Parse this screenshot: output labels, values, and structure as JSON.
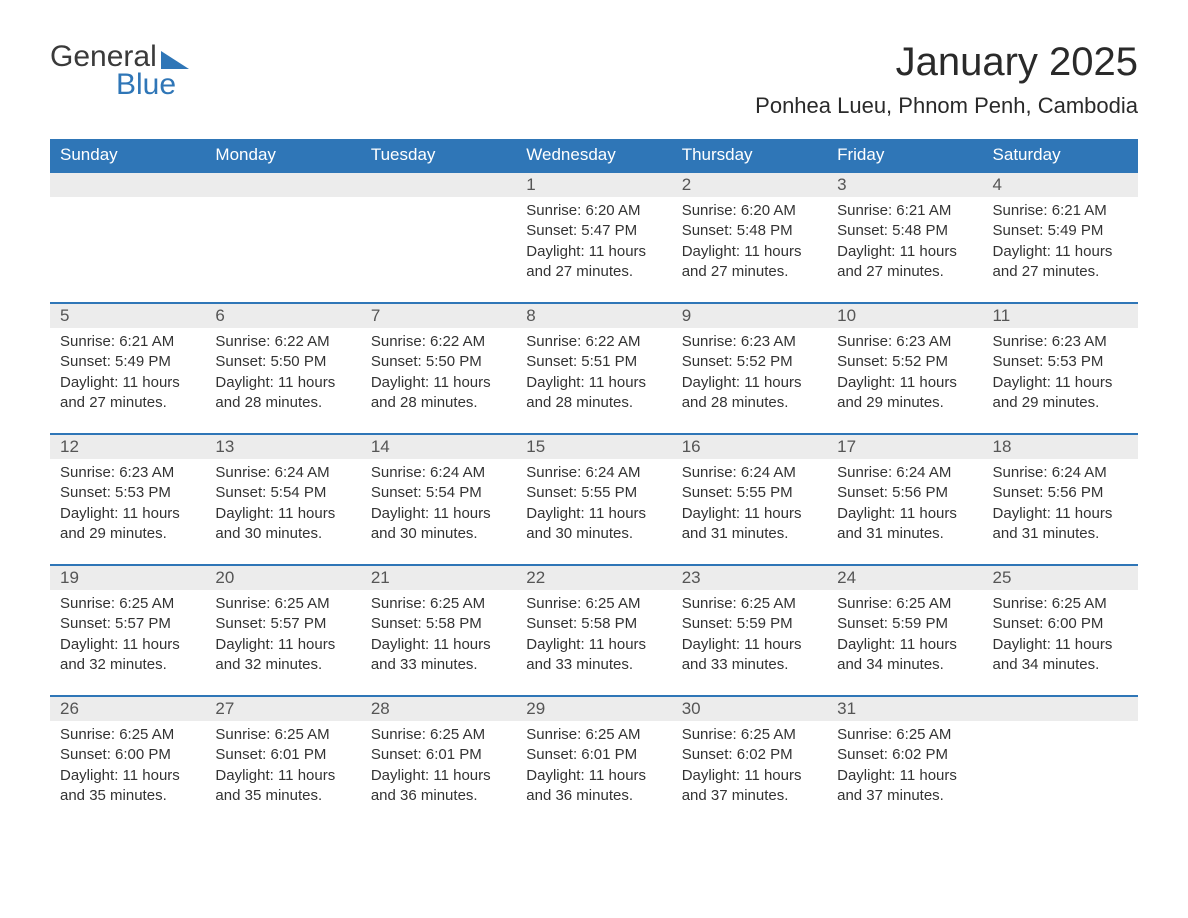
{
  "logo": {
    "word1": "General",
    "word2": "Blue"
  },
  "title": "January 2025",
  "location": "Ponhea Lueu, Phnom Penh, Cambodia",
  "colors": {
    "header_bg": "#2f76b7",
    "header_text": "#ffffff",
    "daynum_bg": "#ececec",
    "row_border": "#2f76b7",
    "text": "#333333",
    "bg": "#ffffff"
  },
  "fonts": {
    "title_pt": 40,
    "location_pt": 22,
    "header_pt": 17,
    "cell_pt": 15
  },
  "day_headers": [
    "Sunday",
    "Monday",
    "Tuesday",
    "Wednesday",
    "Thursday",
    "Friday",
    "Saturday"
  ],
  "labels": {
    "sunrise": "Sunrise: ",
    "sunset": "Sunset: ",
    "daylight_prefix": "Daylight: "
  },
  "weeks": [
    [
      null,
      null,
      null,
      {
        "n": "1",
        "sunrise": "6:20 AM",
        "sunset": "5:47 PM",
        "daylight": "11 hours and 27 minutes."
      },
      {
        "n": "2",
        "sunrise": "6:20 AM",
        "sunset": "5:48 PM",
        "daylight": "11 hours and 27 minutes."
      },
      {
        "n": "3",
        "sunrise": "6:21 AM",
        "sunset": "5:48 PM",
        "daylight": "11 hours and 27 minutes."
      },
      {
        "n": "4",
        "sunrise": "6:21 AM",
        "sunset": "5:49 PM",
        "daylight": "11 hours and 27 minutes."
      }
    ],
    [
      {
        "n": "5",
        "sunrise": "6:21 AM",
        "sunset": "5:49 PM",
        "daylight": "11 hours and 27 minutes."
      },
      {
        "n": "6",
        "sunrise": "6:22 AM",
        "sunset": "5:50 PM",
        "daylight": "11 hours and 28 minutes."
      },
      {
        "n": "7",
        "sunrise": "6:22 AM",
        "sunset": "5:50 PM",
        "daylight": "11 hours and 28 minutes."
      },
      {
        "n": "8",
        "sunrise": "6:22 AM",
        "sunset": "5:51 PM",
        "daylight": "11 hours and 28 minutes."
      },
      {
        "n": "9",
        "sunrise": "6:23 AM",
        "sunset": "5:52 PM",
        "daylight": "11 hours and 28 minutes."
      },
      {
        "n": "10",
        "sunrise": "6:23 AM",
        "sunset": "5:52 PM",
        "daylight": "11 hours and 29 minutes."
      },
      {
        "n": "11",
        "sunrise": "6:23 AM",
        "sunset": "5:53 PM",
        "daylight": "11 hours and 29 minutes."
      }
    ],
    [
      {
        "n": "12",
        "sunrise": "6:23 AM",
        "sunset": "5:53 PM",
        "daylight": "11 hours and 29 minutes."
      },
      {
        "n": "13",
        "sunrise": "6:24 AM",
        "sunset": "5:54 PM",
        "daylight": "11 hours and 30 minutes."
      },
      {
        "n": "14",
        "sunrise": "6:24 AM",
        "sunset": "5:54 PM",
        "daylight": "11 hours and 30 minutes."
      },
      {
        "n": "15",
        "sunrise": "6:24 AM",
        "sunset": "5:55 PM",
        "daylight": "11 hours and 30 minutes."
      },
      {
        "n": "16",
        "sunrise": "6:24 AM",
        "sunset": "5:55 PM",
        "daylight": "11 hours and 31 minutes."
      },
      {
        "n": "17",
        "sunrise": "6:24 AM",
        "sunset": "5:56 PM",
        "daylight": "11 hours and 31 minutes."
      },
      {
        "n": "18",
        "sunrise": "6:24 AM",
        "sunset": "5:56 PM",
        "daylight": "11 hours and 31 minutes."
      }
    ],
    [
      {
        "n": "19",
        "sunrise": "6:25 AM",
        "sunset": "5:57 PM",
        "daylight": "11 hours and 32 minutes."
      },
      {
        "n": "20",
        "sunrise": "6:25 AM",
        "sunset": "5:57 PM",
        "daylight": "11 hours and 32 minutes."
      },
      {
        "n": "21",
        "sunrise": "6:25 AM",
        "sunset": "5:58 PM",
        "daylight": "11 hours and 33 minutes."
      },
      {
        "n": "22",
        "sunrise": "6:25 AM",
        "sunset": "5:58 PM",
        "daylight": "11 hours and 33 minutes."
      },
      {
        "n": "23",
        "sunrise": "6:25 AM",
        "sunset": "5:59 PM",
        "daylight": "11 hours and 33 minutes."
      },
      {
        "n": "24",
        "sunrise": "6:25 AM",
        "sunset": "5:59 PM",
        "daylight": "11 hours and 34 minutes."
      },
      {
        "n": "25",
        "sunrise": "6:25 AM",
        "sunset": "6:00 PM",
        "daylight": "11 hours and 34 minutes."
      }
    ],
    [
      {
        "n": "26",
        "sunrise": "6:25 AM",
        "sunset": "6:00 PM",
        "daylight": "11 hours and 35 minutes."
      },
      {
        "n": "27",
        "sunrise": "6:25 AM",
        "sunset": "6:01 PM",
        "daylight": "11 hours and 35 minutes."
      },
      {
        "n": "28",
        "sunrise": "6:25 AM",
        "sunset": "6:01 PM",
        "daylight": "11 hours and 36 minutes."
      },
      {
        "n": "29",
        "sunrise": "6:25 AM",
        "sunset": "6:01 PM",
        "daylight": "11 hours and 36 minutes."
      },
      {
        "n": "30",
        "sunrise": "6:25 AM",
        "sunset": "6:02 PM",
        "daylight": "11 hours and 37 minutes."
      },
      {
        "n": "31",
        "sunrise": "6:25 AM",
        "sunset": "6:02 PM",
        "daylight": "11 hours and 37 minutes."
      },
      null
    ]
  ]
}
